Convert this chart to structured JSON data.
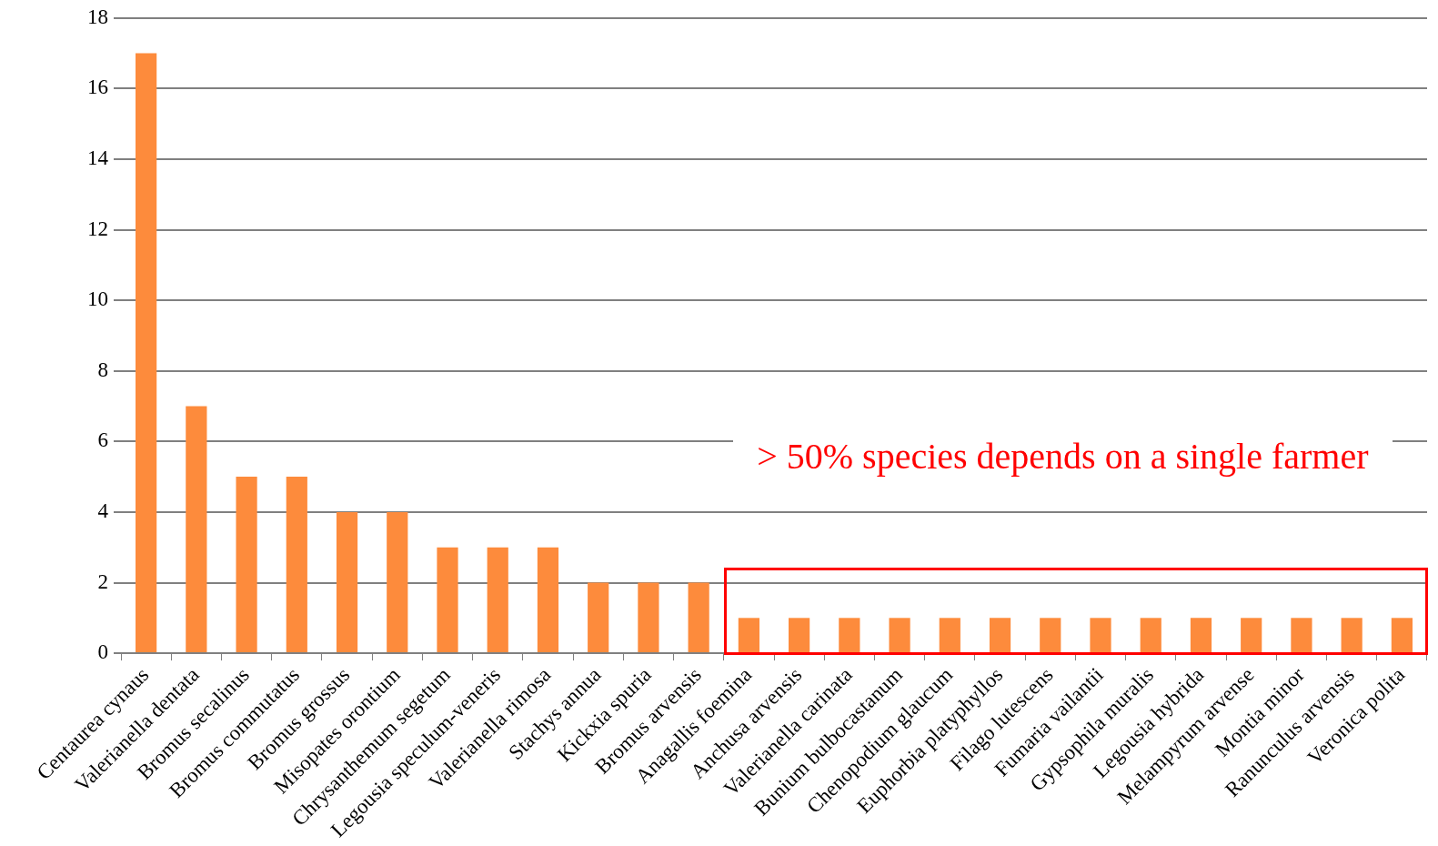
{
  "chart_data": {
    "type": "bar",
    "categories": [
      "Centaurea cynaus",
      "Valerianella dentata",
      "Bromus secalinus",
      "Bromus commutatus",
      "Bromus grossus",
      "Misopates orontium",
      "Chrysanthemum segetum",
      "Legousia speculum-veneris",
      "Valerianella rimosa",
      "Stachys annua",
      "Kickxia spuria",
      "Bromus arvensis",
      "Anagallis foemina",
      "Anchusa arvensis",
      "Valerianella carinata",
      "Bunium bulbocastanum",
      "Chenopodium glaucum",
      "Euphorbia platyphyllos",
      "Filago lutescens",
      "Fumaria vailantii",
      "Gypsophila muralis",
      "Legousia hybrida",
      "Melampyrum arvense",
      "Montia minor",
      "Ranunculus arvensis",
      "Veronica polita"
    ],
    "values": [
      17,
      7,
      5,
      5,
      4,
      4,
      3,
      3,
      3,
      2,
      2,
      2,
      1,
      1,
      1,
      1,
      1,
      1,
      1,
      1,
      1,
      1,
      1,
      1,
      1,
      1
    ],
    "color": "#fd8b3c",
    "ylim": [
      0,
      18
    ],
    "yticks": [
      0,
      2,
      4,
      6,
      8,
      10,
      12,
      14,
      16,
      18
    ],
    "grid": "y",
    "legend": false,
    "annotations": [
      "> 50% species depends on a single farmer"
    ]
  }
}
